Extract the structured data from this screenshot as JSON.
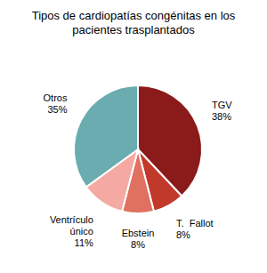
{
  "chart_data": {
    "type": "pie",
    "title": "Tipos de cardiopatías congénitas en los\npacientes trasplantados",
    "categories": [
      "TGV",
      "T.  Fallot",
      "Ebstein",
      "Ventrículo\núnico",
      "Otros"
    ],
    "values": [
      38,
      8,
      8,
      11,
      35
    ],
    "value_labels": [
      "38%",
      "8%",
      "8%",
      "11%",
      "35%"
    ],
    "colors": [
      "#8B1A1A",
      "#C0392B",
      "#E07060",
      "#F4A9A3",
      "#6AACB0"
    ],
    "data_labels": true
  }
}
